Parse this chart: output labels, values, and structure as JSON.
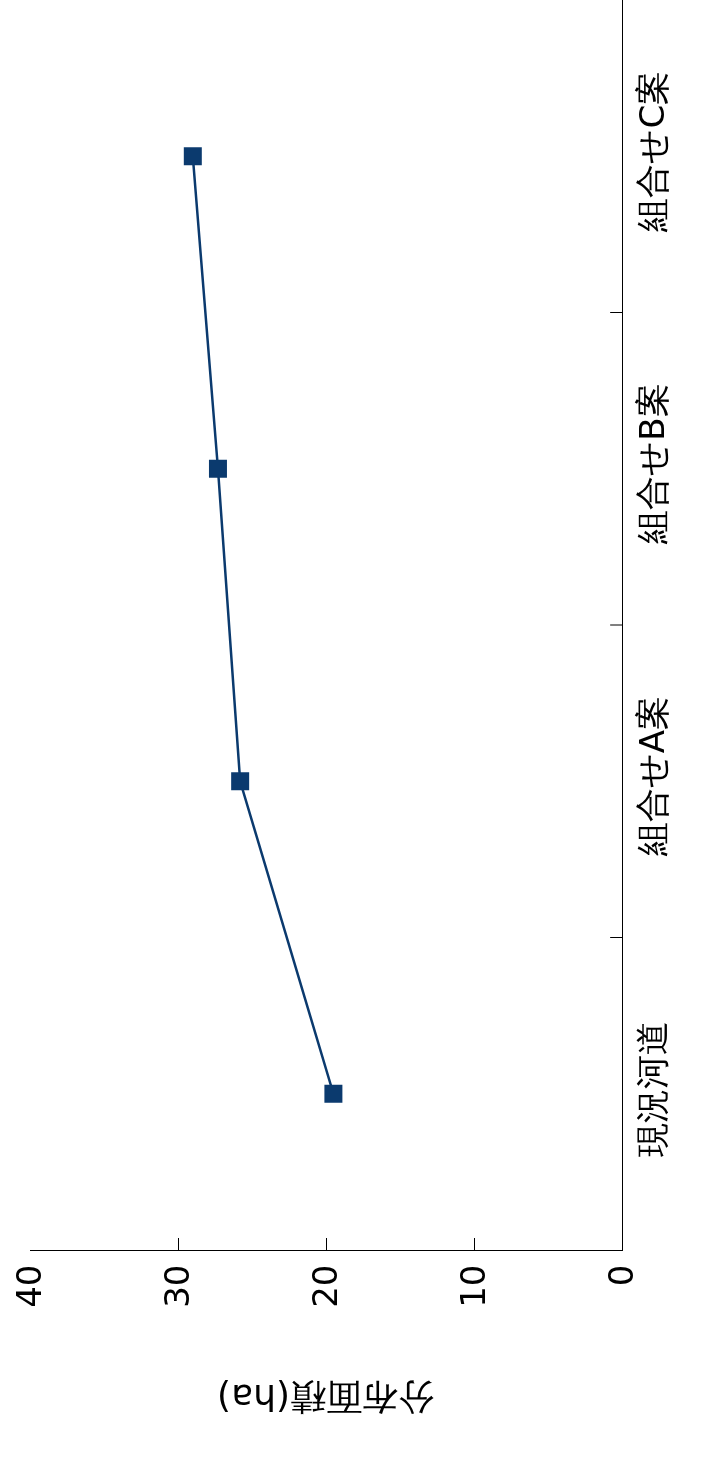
{
  "chart_data": {
    "type": "line",
    "orientation": "horizontal",
    "xlabel": "分布面積(ha)",
    "categories": [
      "組合せC案",
      "組合せB案",
      "組合せA案",
      "現況河道"
    ],
    "series": [
      {
        "color": "#0b3a6e",
        "values": [
          29.0,
          27.3,
          25.8,
          19.5
        ]
      }
    ],
    "xlim": [
      40,
      0
    ],
    "xticks": [
      40,
      30,
      20,
      10,
      0
    ],
    "marker": "square",
    "line_style": "solid"
  }
}
